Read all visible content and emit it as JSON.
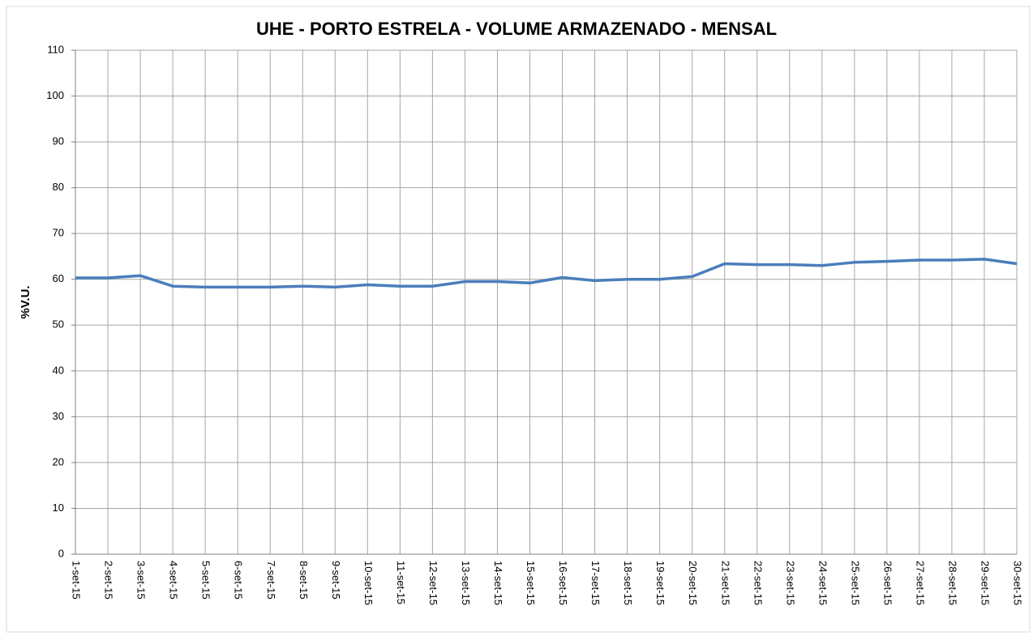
{
  "chart_data": {
    "type": "line",
    "title": "UHE - PORTO ESTRELA - VOLUME ARMAZENADO -  MENSAL",
    "y_label": "%V.U.",
    "categories": [
      "1-set-15",
      "2-set-15",
      "3-set-15",
      "4-set-15",
      "5-set-15",
      "6-set-15",
      "7-set-15",
      "8-set-15",
      "9-set-15",
      "10-set-15",
      "11-set-15",
      "12-set-15",
      "13-set-15",
      "14-set-15",
      "15-set-15",
      "16-set-15",
      "17-set-15",
      "18-set-15",
      "19-set-15",
      "20-set-15",
      "21-set-15",
      "22-set-15",
      "23-set-15",
      "24-set-15",
      "25-set-15",
      "26-set-15",
      "27-set-15",
      "28-set-15",
      "29-set-15",
      "30-set-15"
    ],
    "series": [
      {
        "name": "%V.U.",
        "color": "#4a7ebb",
        "values": [
          60.3,
          60.3,
          60.8,
          58.5,
          58.3,
          58.3,
          58.3,
          58.5,
          58.3,
          58.8,
          58.5,
          58.5,
          59.5,
          59.5,
          59.2,
          60.4,
          59.7,
          60.0,
          60.0,
          60.6,
          63.4,
          63.2,
          63.2,
          63.0,
          63.7,
          63.9,
          64.2,
          64.2,
          64.4,
          63.4
        ]
      }
    ],
    "ylim": [
      0,
      110
    ],
    "yticks": [
      0,
      10,
      20,
      30,
      40,
      50,
      60,
      70,
      80,
      90,
      100,
      110
    ],
    "grid": true
  }
}
